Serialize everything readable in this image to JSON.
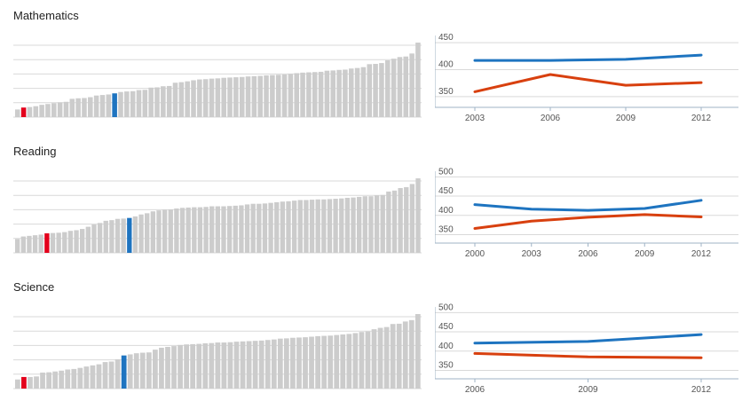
{
  "colors": {
    "bar": "#cccccc",
    "highlight_low": "#e3001b",
    "highlight_self": "#1e74c0",
    "line_self": "#1e74c0",
    "line_other": "#d8400f",
    "grid": "#d9d9d9",
    "axis": "#9fb3c6"
  },
  "sections": [
    {
      "title": "Mathematics",
      "ranking": {
        "values": [
          368,
          375,
          377,
          380,
          385,
          388,
          391,
          394,
          396,
          407,
          409,
          410,
          413,
          419,
          421,
          423,
          427,
          432,
          434,
          435,
          439,
          440,
          448,
          449,
          453,
          454,
          466,
          468,
          471,
          475,
          478,
          479,
          481,
          482,
          484,
          485,
          486,
          487,
          489,
          490,
          491,
          493,
          494,
          495,
          496,
          498,
          501,
          503,
          504,
          505,
          506,
          510,
          511,
          513,
          514,
          518,
          520,
          523,
          534,
          535,
          538,
          548,
          554,
          560,
          562,
          573,
          613
        ],
        "low_index": 1,
        "self_index": 16
      },
      "trend": {
        "type": "line",
        "x_ticks": [
          "2003",
          "2006",
          "2009",
          "2012"
        ],
        "y_ticks": [
          "450",
          "400",
          "350"
        ],
        "series": [
          {
            "values": [
              417,
              417,
              419,
              427
            ]
          },
          {
            "values": [
              359,
              391,
              371,
              376
            ]
          }
        ]
      }
    },
    {
      "title": "Reading",
      "ranking": {
        "values": [
          384,
          392,
          394,
          396,
          398,
          402,
          403,
          404,
          406,
          410,
          412,
          416,
          423,
          430,
          435,
          442,
          444,
          448,
          449,
          451,
          456,
          462,
          466,
          472,
          475,
          477,
          478,
          481,
          483,
          484,
          485,
          485,
          486,
          488,
          488,
          488,
          489,
          490,
          491,
          494,
          496,
          496,
          497,
          499,
          501,
          503,
          504,
          506,
          508,
          508,
          509,
          510,
          510,
          511,
          512,
          513,
          515,
          516,
          518,
          520,
          520,
          523,
          524,
          535,
          538,
          546,
          549,
          559,
          577
        ],
        "low_index": 5,
        "self_index": 19
      },
      "trend": {
        "type": "line",
        "x_ticks": [
          "2000",
          "2003",
          "2006",
          "2009",
          "2012"
        ],
        "y_ticks": [
          "500",
          "450",
          "400",
          "350"
        ],
        "series": [
          {
            "values": [
              428,
              416,
              413,
              418,
              439
            ]
          },
          {
            "values": [
              366,
              385,
              395,
              402,
              396
            ]
          }
        ]
      }
    },
    {
      "title": "Science",
      "ranking": {
        "values": [
          373,
          382,
          382,
          384,
          398,
          399,
          402,
          405,
          409,
          411,
          415,
          420,
          424,
          428,
          436,
          438,
          446,
          460,
          464,
          468,
          470,
          471,
          481,
          488,
          491,
          494,
          498,
          500,
          501,
          502,
          504,
          505,
          507,
          507,
          508,
          510,
          511,
          512,
          513,
          514,
          516,
          518,
          521,
          522,
          524,
          525,
          526,
          528,
          530,
          531,
          532,
          534,
          536,
          538,
          541,
          545,
          547,
          555,
          560,
          563,
          574,
          575,
          583,
          588,
          610
        ],
        "low_index": 1,
        "self_index": 17
      },
      "trend": {
        "type": "line",
        "x_ticks": [
          "2006",
          "2009",
          "2012"
        ],
        "y_ticks": [
          "500",
          "450",
          "400",
          "350"
        ],
        "series": [
          {
            "values": [
              421,
              425,
              443
            ]
          },
          {
            "values": [
              394,
              385,
              383
            ]
          }
        ]
      }
    }
  ]
}
